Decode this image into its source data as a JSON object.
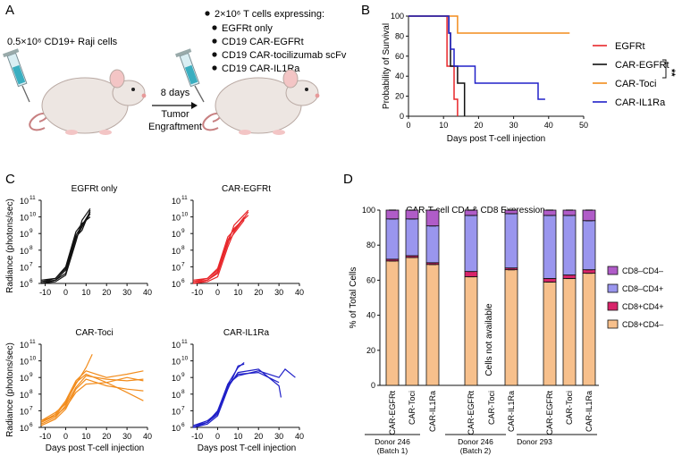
{
  "panels": {
    "a": {
      "label": "A",
      "cells_text": "0.5×10⁶ CD19+ Raji cells",
      "tcells_text": "2×10⁶ T cells expressing:",
      "groups": [
        "EGFRt only",
        "CD19 CAR-EGFRt",
        "CD19 CAR-tocilizumab scFv",
        "CD19 CAR-IL1Ra"
      ],
      "days_text": "8 days",
      "tumor_text": "Tumor",
      "engraft_text": "Engraftment"
    },
    "b": {
      "label": "B",
      "significance": "**"
    },
    "c": {
      "label": "C"
    },
    "d": {
      "label": "D",
      "not_available_text": "Cells not available",
      "donors": [
        {
          "line1": "Donor 246",
          "line2": "(Batch 1)"
        },
        {
          "line1": "Donor 246",
          "line2": "(Batch 2)"
        },
        {
          "line1": "Donor 293",
          "line2": ""
        }
      ]
    }
  },
  "colors": {
    "egfrt": "#e8262a",
    "car_egfrt": "#111111",
    "car_toci": "#f28c1c",
    "car_il1ra": "#2020c8",
    "cd8_cd4_neg": "#b05cc8",
    "cd8neg_cd4pos": "#9a96ee",
    "cd8pos_cd4pos": "#d8246a",
    "cd8pos_cd4neg": "#f7c08c"
  },
  "chart_data": [
    {
      "id": "survival",
      "type": "line",
      "title": "",
      "xlabel": "Days post T-cell injection",
      "ylabel": "Probability of Survival",
      "xlim": [
        0,
        50
      ],
      "ylim": [
        0,
        100
      ],
      "xticks": [
        "0",
        "10",
        "20",
        "30",
        "40",
        "50"
      ],
      "yticks": [
        "0",
        "20",
        "40",
        "60",
        "80",
        "100"
      ],
      "series": [
        {
          "name": "EGFRt",
          "color_key": "egfrt",
          "x": [
            0,
            11,
            11,
            13,
            13,
            14,
            14
          ],
          "y": [
            100,
            100,
            50,
            50,
            17,
            17,
            0
          ]
        },
        {
          "name": "CAR-EGFRt",
          "color_key": "car_egfrt",
          "x": [
            0,
            11.5,
            11.5,
            12,
            12,
            14,
            14,
            16,
            16
          ],
          "y": [
            100,
            100,
            83,
            83,
            50,
            50,
            33,
            33,
            0
          ]
        },
        {
          "name": "CAR-Toci",
          "color_key": "car_toci",
          "x": [
            0,
            14,
            14,
            46
          ],
          "y": [
            100,
            100,
            83,
            83
          ]
        },
        {
          "name": "CAR-IL1Ra",
          "color_key": "car_il1ra",
          "x": [
            0,
            11.5,
            11.5,
            12,
            12,
            13,
            13,
            19,
            19,
            37,
            37,
            39
          ],
          "y": [
            100,
            100,
            83,
            83,
            67,
            67,
            50,
            50,
            33,
            33,
            17,
            17
          ]
        }
      ]
    },
    {
      "id": "radiance",
      "type": "line",
      "ylabel": "Radiance (photons/sec)",
      "xlabel": "Days post T-cell injection",
      "xlim": [
        -12,
        40
      ],
      "ylim_log10": [
        6,
        11
      ],
      "xticks": [
        "-10",
        "0",
        "10",
        "20",
        "30",
        "40"
      ],
      "ytick_exponents": [
        "6",
        "7",
        "8",
        "9",
        "10",
        "11"
      ],
      "subplots": [
        {
          "title": "EGFRt only",
          "color_key": "car_egfrt",
          "lines": [
            [
              [
                -12,
                6.0
              ],
              [
                -5,
                6.2
              ],
              [
                0,
                6.6
              ],
              [
                5,
                8.7
              ],
              [
                8,
                9.4
              ],
              [
                12,
                10.2
              ]
            ],
            [
              [
                -12,
                6.1
              ],
              [
                -5,
                6.3
              ],
              [
                0,
                6.9
              ],
              [
                5,
                8.9
              ],
              [
                8,
                9.5
              ],
              [
                12,
                10.3
              ]
            ],
            [
              [
                -12,
                6.0
              ],
              [
                -5,
                6.1
              ],
              [
                0,
                6.5
              ],
              [
                5,
                8.5
              ],
              [
                8,
                9.8
              ],
              [
                12,
                10.5
              ]
            ],
            [
              [
                -12,
                6.2
              ],
              [
                -5,
                6.3
              ],
              [
                0,
                7.0
              ],
              [
                5,
                9.1
              ],
              [
                8,
                9.6
              ],
              [
                12,
                10.0
              ]
            ],
            [
              [
                -12,
                6.1
              ],
              [
                -5,
                6.2
              ],
              [
                0,
                6.8
              ],
              [
                5,
                8.8
              ],
              [
                8,
                9.2
              ],
              [
                12,
                10.4
              ]
            ]
          ]
        },
        {
          "title": "CAR-EGFRt",
          "color_key": "egfrt",
          "lines": [
            [
              [
                -12,
                6.0
              ],
              [
                -5,
                6.1
              ],
              [
                0,
                6.4
              ],
              [
                5,
                8.2
              ],
              [
                8,
                9.1
              ],
              [
                15,
                10.3
              ]
            ],
            [
              [
                -12,
                6.1
              ],
              [
                -5,
                6.3
              ],
              [
                0,
                6.8
              ],
              [
                5,
                8.6
              ],
              [
                8,
                9.3
              ],
              [
                15,
                10.1
              ]
            ],
            [
              [
                -12,
                6.0
              ],
              [
                -5,
                6.2
              ],
              [
                0,
                6.6
              ],
              [
                5,
                8.4
              ],
              [
                8,
                9.5
              ],
              [
                15,
                10.4
              ]
            ],
            [
              [
                -12,
                6.2
              ],
              [
                -5,
                6.3
              ],
              [
                0,
                6.9
              ],
              [
                5,
                8.8
              ],
              [
                8,
                9.2
              ],
              [
                13,
                10.0
              ]
            ],
            [
              [
                -12,
                6.1
              ],
              [
                -5,
                6.2
              ],
              [
                0,
                6.7
              ],
              [
                5,
                8.5
              ],
              [
                8,
                9.0
              ],
              [
                13,
                9.8
              ]
            ]
          ]
        },
        {
          "title": "CAR-Toci",
          "color_key": "car_toci",
          "lines": [
            [
              [
                -12,
                6.4
              ],
              [
                -5,
                6.7
              ],
              [
                0,
                7.5
              ],
              [
                5,
                8.6
              ],
              [
                10,
                9.6
              ],
              [
                13,
                10.4
              ]
            ],
            [
              [
                -12,
                6.2
              ],
              [
                -5,
                6.6
              ],
              [
                0,
                7.3
              ],
              [
                5,
                8.4
              ],
              [
                10,
                9.1
              ],
              [
                20,
                8.9
              ],
              [
                30,
                8.8
              ],
              [
                38,
                8.9
              ]
            ],
            [
              [
                -12,
                6.3
              ],
              [
                -5,
                6.8
              ],
              [
                0,
                7.6
              ],
              [
                5,
                8.8
              ],
              [
                10,
                9.4
              ],
              [
                20,
                9.0
              ],
              [
                30,
                9.2
              ],
              [
                38,
                9.4
              ]
            ],
            [
              [
                -12,
                6.1
              ],
              [
                -5,
                6.5
              ],
              [
                0,
                7.1
              ],
              [
                5,
                8.3
              ],
              [
                10,
                8.9
              ],
              [
                20,
                8.5
              ],
              [
                30,
                8.3
              ],
              [
                38,
                8.2
              ]
            ],
            [
              [
                -12,
                6.4
              ],
              [
                -5,
                6.9
              ],
              [
                0,
                7.4
              ],
              [
                5,
                8.7
              ],
              [
                10,
                9.2
              ],
              [
                20,
                8.7
              ],
              [
                30,
                9.0
              ],
              [
                38,
                8.8
              ]
            ],
            [
              [
                -12,
                6.3
              ],
              [
                -5,
                6.7
              ],
              [
                0,
                7.2
              ],
              [
                5,
                8.1
              ],
              [
                10,
                8.6
              ],
              [
                20,
                8.7
              ],
              [
                30,
                8.1
              ],
              [
                38,
                7.6
              ]
            ]
          ]
        },
        {
          "title": "CAR-IL1Ra",
          "color_key": "car_il1ra",
          "lines": [
            [
              [
                -12,
                6.0
              ],
              [
                -5,
                6.3
              ],
              [
                0,
                7.0
              ],
              [
                5,
                8.6
              ],
              [
                10,
                9.6
              ],
              [
                13,
                9.9
              ]
            ],
            [
              [
                -12,
                6.0
              ],
              [
                -5,
                6.3
              ],
              [
                0,
                6.8
              ],
              [
                5,
                8.4
              ],
              [
                10,
                9.3
              ],
              [
                20,
                9.5
              ],
              [
                30,
                8.5
              ],
              [
                31,
                7.8
              ]
            ],
            [
              [
                -12,
                6.1
              ],
              [
                -5,
                6.4
              ],
              [
                0,
                6.9
              ],
              [
                5,
                8.6
              ],
              [
                10,
                9.1
              ],
              [
                20,
                9.4
              ],
              [
                30,
                9.0
              ],
              [
                33,
                9.5
              ],
              [
                38,
                9.0
              ]
            ],
            [
              [
                -12,
                6.0
              ],
              [
                -5,
                6.2
              ],
              [
                0,
                6.7
              ],
              [
                5,
                8.3
              ],
              [
                10,
                9.7
              ],
              [
                13,
                9.8
              ]
            ],
            [
              [
                -12,
                6.1
              ],
              [
                -5,
                6.3
              ],
              [
                0,
                6.9
              ],
              [
                5,
                8.5
              ],
              [
                10,
                9.2
              ],
              [
                20,
                9.3
              ],
              [
                30,
                8.7
              ]
            ]
          ]
        }
      ]
    },
    {
      "id": "cd4cd8",
      "type": "bar",
      "title": "CAR-T cell CD4 & CD8 Expression",
      "ylabel": "% of Total Cells",
      "ylim": [
        0,
        100
      ],
      "yticks": [
        "0",
        "20",
        "40",
        "60",
        "80",
        "100"
      ],
      "legend": [
        "CD8–CD4–",
        "CD8–CD4+",
        "CD8+CD4+",
        "CD8+CD4–"
      ],
      "legend_color_keys": [
        "cd8_cd4_neg",
        "cd8neg_cd4pos",
        "cd8pos_cd4pos",
        "cd8pos_cd4neg"
      ],
      "stack_order_bottom_to_top": [
        "CD8+CD4–",
        "CD8+CD4+",
        "CD8–CD4+",
        "CD8–CD4–"
      ],
      "bars": [
        {
          "label": "CAR-EGFRt",
          "donor": 0,
          "values": [
            71,
            1,
            23,
            5
          ]
        },
        {
          "label": "CAR-Toci",
          "donor": 0,
          "values": [
            73,
            1,
            21,
            5
          ]
        },
        {
          "label": "CAR-IL1Ra",
          "donor": 0,
          "values": [
            69,
            1,
            21,
            9
          ]
        },
        {
          "label": "CAR-EGFRt",
          "donor": 1,
          "values": [
            62,
            3,
            32,
            3
          ]
        },
        {
          "label": "CAR-Toci",
          "donor": 1,
          "values": null
        },
        {
          "label": "CAR-IL1Ra",
          "donor": 1,
          "values": [
            66,
            1,
            31,
            2
          ]
        },
        {
          "label": "CAR-EGFRt",
          "donor": 2,
          "values": [
            59,
            2,
            36,
            3
          ]
        },
        {
          "label": "CAR-Toci",
          "donor": 2,
          "values": [
            61,
            2,
            34,
            3
          ]
        },
        {
          "label": "CAR-IL1Ra",
          "donor": 2,
          "values": [
            64,
            2,
            28,
            6
          ]
        }
      ]
    }
  ]
}
